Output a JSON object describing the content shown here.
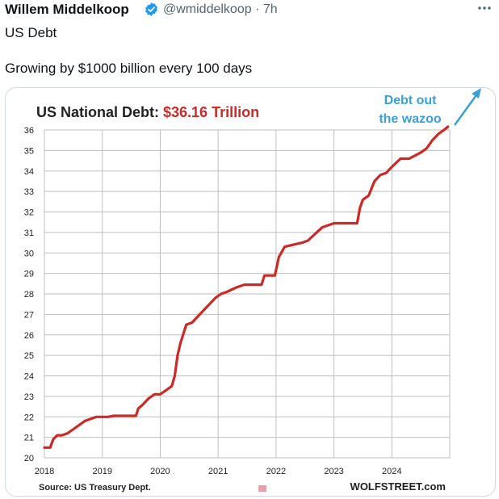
{
  "tweet": {
    "author_name": "Willem Middelkoop",
    "handle_time": "@wmiddelkoop · 7h",
    "text_line1": "US Debt",
    "text_line2": "Growing by $1000 billion every 100 days",
    "verified_icon": "verified-badge-icon",
    "more_icon": "more-dots-icon",
    "colors": {
      "verified": "#1d9bf0",
      "muted": "#536471"
    }
  },
  "chart_data": {
    "type": "line",
    "title_prefix": "US National Debt: ",
    "title_value": "$36.16 Trillion",
    "annotation_line1": "Debt out",
    "annotation_line2": "the wazoo",
    "source": "Source: US Treasury Dept.",
    "credit": "WOLFSTREET.com",
    "x_ticks": [
      "2018",
      "2019",
      "2020",
      "2021",
      "2022",
      "2023",
      "2024"
    ],
    "y_ticks": [
      20,
      21,
      22,
      23,
      24,
      25,
      26,
      27,
      28,
      29,
      30,
      31,
      32,
      33,
      34,
      35,
      36
    ],
    "xlim": [
      2018.0,
      2025.0
    ],
    "ylim": [
      20,
      36
    ],
    "grid": true,
    "colors": {
      "line": "#cc2a27",
      "title_value": "#cc2a27",
      "annotation": "#3aa0d8",
      "grid": "#bfbfbf"
    },
    "series": [
      {
        "name": "",
        "x": [
          2018.0,
          2018.1,
          2018.15,
          2018.22,
          2018.3,
          2018.4,
          2018.5,
          2018.6,
          2018.7,
          2018.8,
          2018.9,
          2019.0,
          2019.1,
          2019.2,
          2019.4,
          2019.5,
          2019.58,
          2019.62,
          2019.7,
          2019.8,
          2019.9,
          2020.0,
          2020.1,
          2020.2,
          2020.25,
          2020.3,
          2020.35,
          2020.45,
          2020.55,
          2020.65,
          2020.75,
          2020.85,
          2020.95,
          2021.05,
          2021.15,
          2021.3,
          2021.45,
          2021.5,
          2021.6,
          2021.75,
          2021.8,
          2021.92,
          2021.98,
          2022.05,
          2022.15,
          2022.3,
          2022.45,
          2022.55,
          2022.7,
          2022.8,
          2023.0,
          2023.1,
          2023.4,
          2023.45,
          2023.5,
          2023.6,
          2023.7,
          2023.8,
          2023.9,
          2024.0,
          2024.15,
          2024.3,
          2024.5,
          2024.6,
          2024.7,
          2024.8,
          2024.9,
          2024.97
        ],
        "y": [
          20.5,
          20.5,
          20.9,
          21.1,
          21.1,
          21.2,
          21.4,
          21.6,
          21.8,
          21.9,
          22.0,
          22.0,
          22.0,
          22.05,
          22.05,
          22.05,
          22.05,
          22.4,
          22.6,
          22.9,
          23.1,
          23.1,
          23.3,
          23.5,
          24.0,
          25.0,
          25.6,
          26.5,
          26.6,
          26.9,
          27.2,
          27.5,
          27.8,
          28.0,
          28.1,
          28.3,
          28.45,
          28.45,
          28.45,
          28.45,
          28.9,
          28.9,
          28.9,
          29.8,
          30.3,
          30.4,
          30.5,
          30.6,
          31.0,
          31.25,
          31.45,
          31.45,
          31.45,
          32.2,
          32.6,
          32.8,
          33.5,
          33.8,
          33.9,
          34.2,
          34.6,
          34.6,
          34.9,
          35.1,
          35.5,
          35.8,
          36.0,
          36.16
        ]
      }
    ]
  }
}
